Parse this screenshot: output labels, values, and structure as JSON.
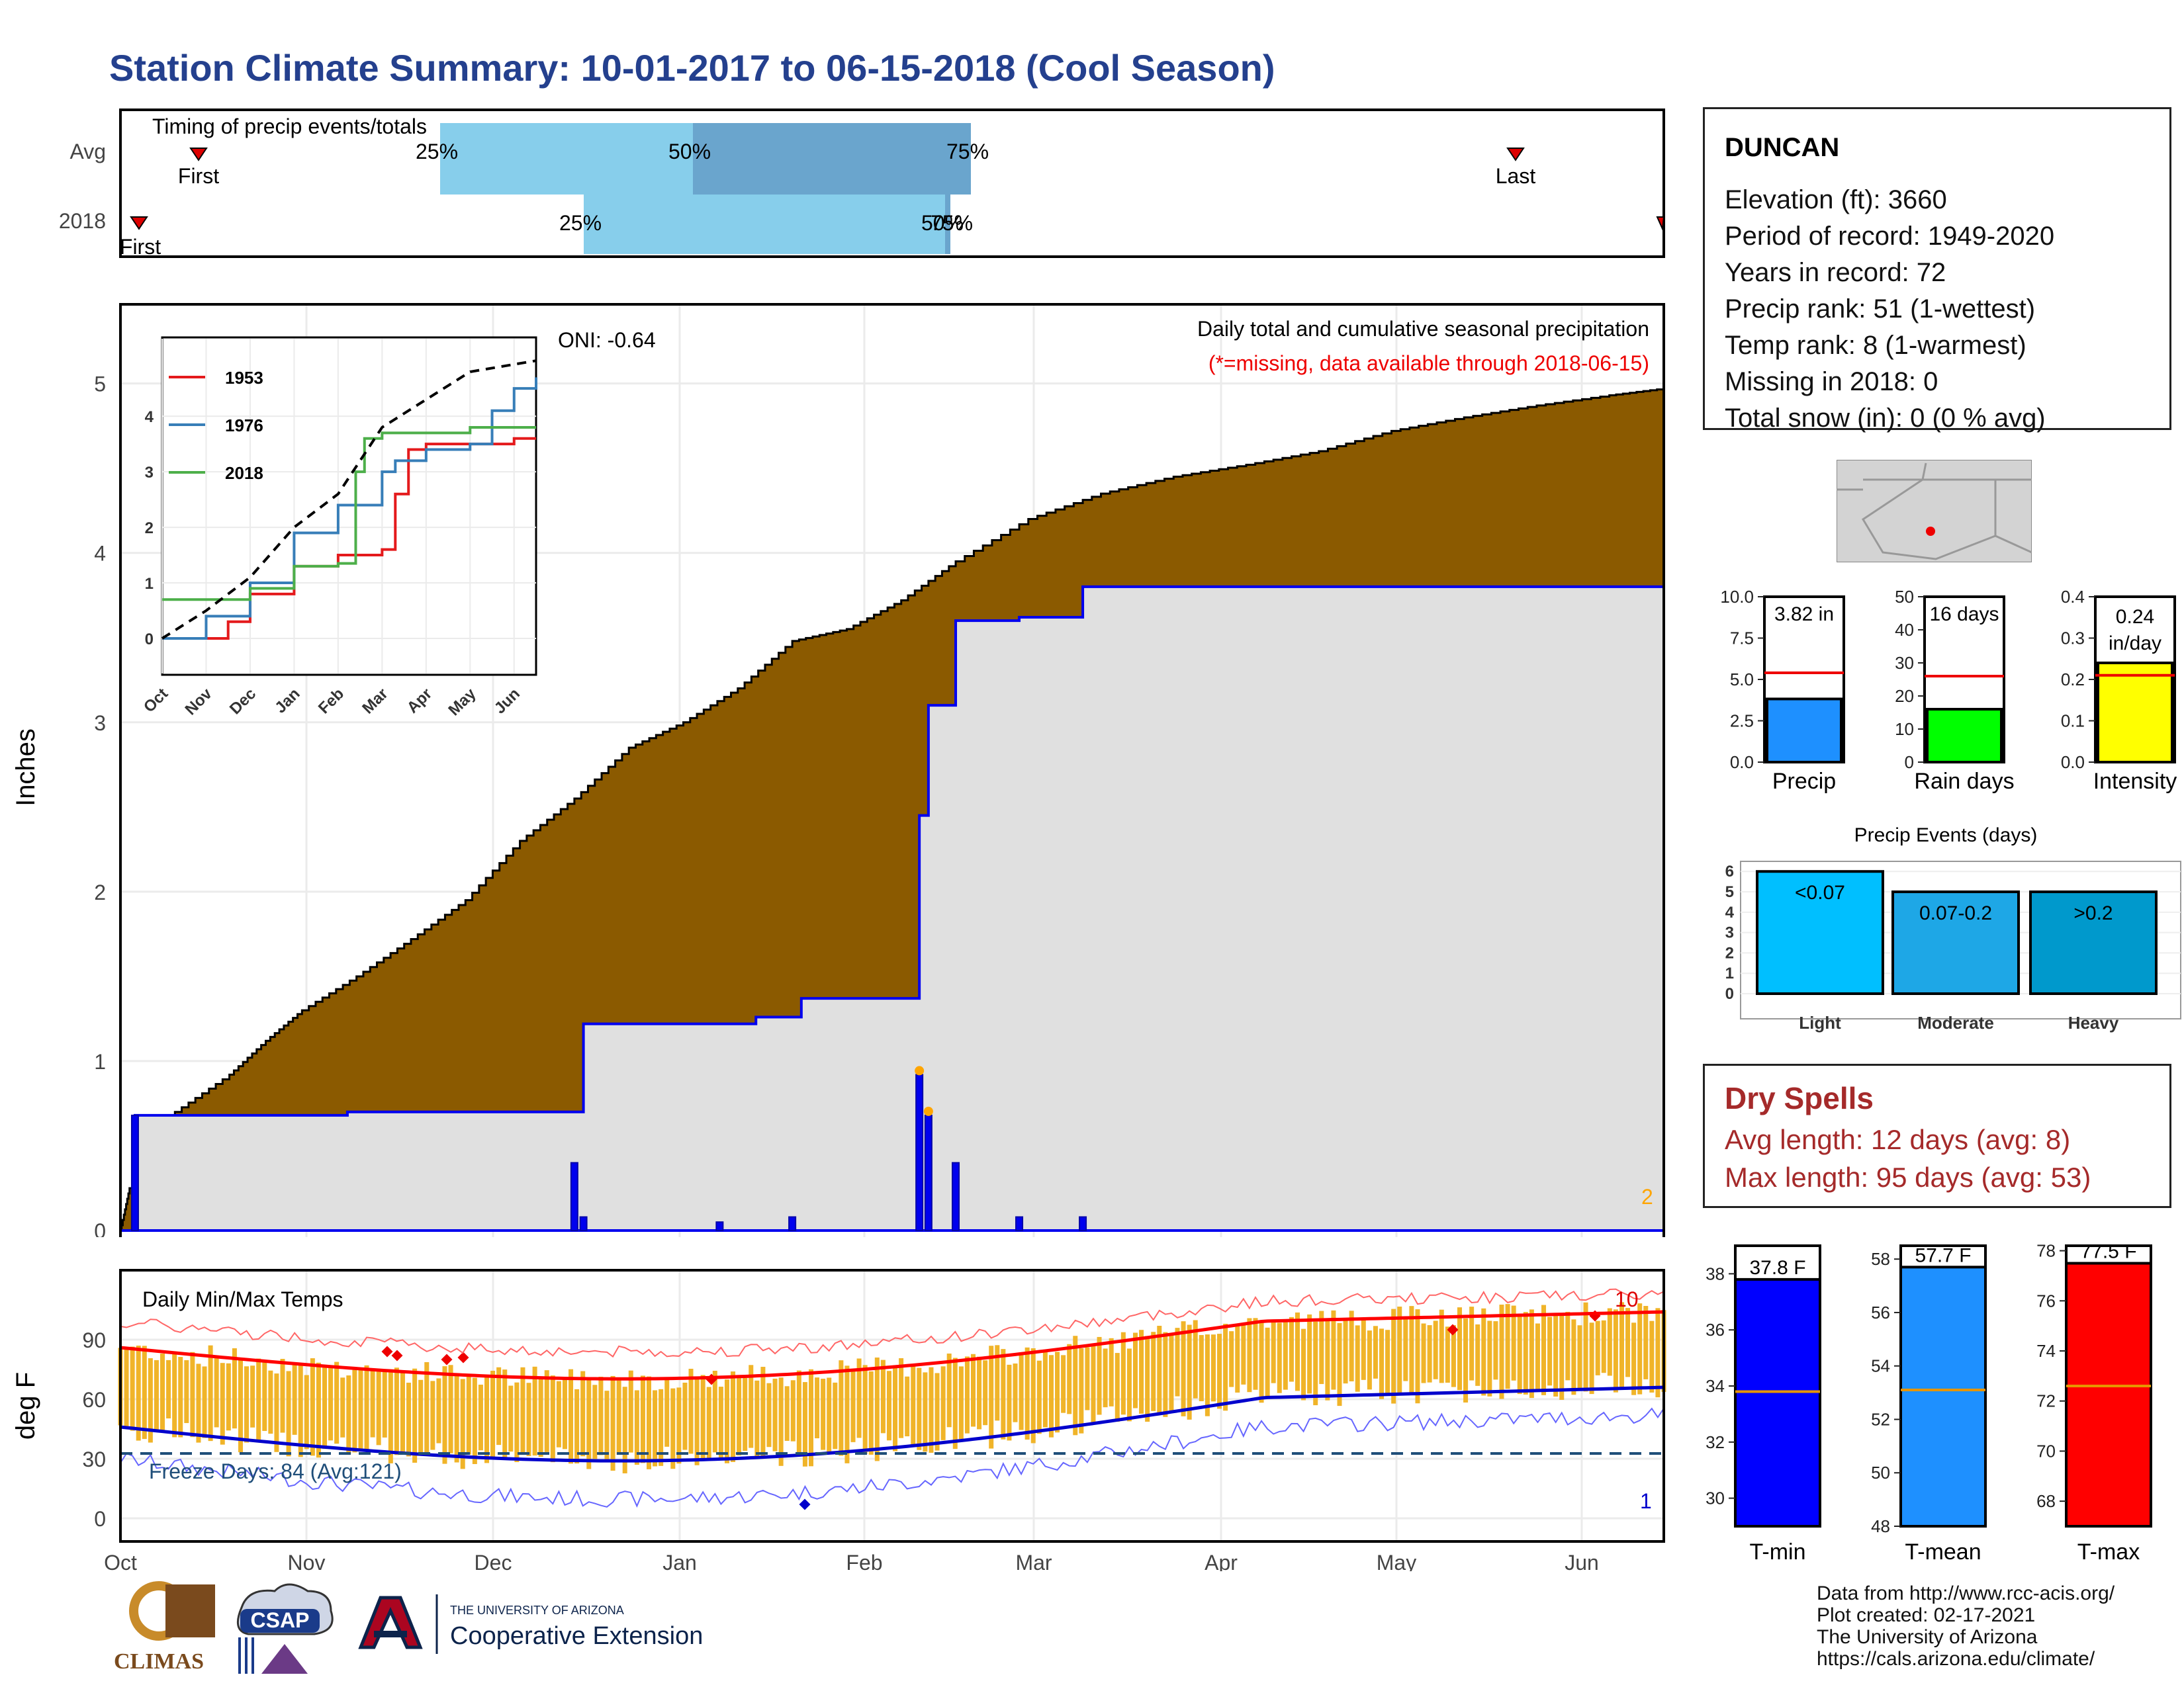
{
  "title": "Station Climate Summary: 10-01-2017 to 06-15-2018 (Cool Season)",
  "timing": {
    "title": "Timing of precip events/totals",
    "rows": [
      "Avg",
      "2018"
    ],
    "first_label": "First",
    "last_label": "Last",
    "avg_pct_labels": [
      "25%",
      "50%",
      "75%"
    ],
    "y2018_pct_labels": [
      "25%",
      "50%",
      "75%"
    ]
  },
  "station": {
    "name": "DUNCAN",
    "lines": [
      "Elevation (ft): 3660",
      "Period of record: 1949-2020",
      "Years in record: 72",
      "Precip rank: 51 (1-wettest)",
      "Temp rank: 8 (1-warmest)",
      "Missing in 2018: 0",
      "Total snow (in): 0 (0 % avg)"
    ]
  },
  "precip_panel": {
    "ylabel": "Inches",
    "subtitle": "Daily total and cumulative seasonal precipitation",
    "missing_note": "(*=missing, data available through 2018-06-15)",
    "oni": "ONI: -0.64",
    "count_label": "2",
    "colors": {
      "cumulative_avg": "#8b5a00",
      "surplus": "#008a00",
      "cumulative_2018": "#e0e0e0",
      "line": "#0000ee"
    }
  },
  "inset": {
    "legend": [
      {
        "name": "1953",
        "color": "#e41a1c"
      },
      {
        "name": "1976",
        "color": "#377eb8"
      },
      {
        "name": "2018",
        "color": "#4daf4a"
      }
    ],
    "months": [
      "Oct",
      "Nov",
      "Dec",
      "Jan",
      "Feb",
      "Mar",
      "Apr",
      "May",
      "Jun"
    ],
    "yticks": [
      "0",
      "1",
      "2",
      "3",
      "4"
    ]
  },
  "temp_panel": {
    "title": "Daily Min/Max Temps",
    "ylabel": "deg F",
    "freeze_label": "Freeze Days: 84 (Avg:121)",
    "record_high_count": "10",
    "record_low_count": "1",
    "yticks": [
      "0",
      "30",
      "60",
      "90"
    ],
    "months": [
      "Oct",
      "Nov",
      "Dec",
      "Jan",
      "Feb",
      "Mar",
      "Apr",
      "May",
      "Jun"
    ]
  },
  "summary_bars": [
    {
      "label": "Precip",
      "value_text": "3.82 in",
      "value": 3.82,
      "avg": 5.4,
      "ymax": 10.0,
      "ticks": [
        "0.0",
        "2.5",
        "5.0",
        "7.5",
        "10.0"
      ],
      "color": "#1e90ff"
    },
    {
      "label": "Rain days",
      "value_text": "16 days",
      "value": 16,
      "avg": 26,
      "ymax": 50,
      "ticks": [
        "0",
        "10",
        "20",
        "30",
        "40",
        "50"
      ],
      "color": "#00ff00"
    },
    {
      "label": "Intensity",
      "value_text": "0.24 in/day",
      "value": 0.24,
      "avg": 0.21,
      "ymax": 0.4,
      "ticks": [
        "0.0",
        "0.1",
        "0.2",
        "0.3",
        "0.4"
      ],
      "color": "#ffff00"
    }
  ],
  "precip_events": {
    "title": "Precip Events (days)",
    "categories": [
      "Light",
      "Moderate",
      "Heavy"
    ],
    "labels": [
      "<0.07",
      "0.07-0.2",
      ">0.2"
    ],
    "values": [
      6,
      5,
      5
    ],
    "yticks": [
      "0",
      "1",
      "2",
      "3",
      "4",
      "5",
      "6"
    ],
    "colors": [
      "#00bfff",
      "#1ea7e6",
      "#0099cc"
    ]
  },
  "dry_spells": {
    "title": "Dry Spells",
    "avg_line": "Avg length: 12 days (avg: 8)",
    "max_line": "Max length: 95 days (avg: 53)"
  },
  "temp_bars": [
    {
      "label": "T-min",
      "value_text": "37.8 F",
      "value": 37.8,
      "avg": 33.8,
      "ymin": 29,
      "ymax": 39,
      "ticks": [
        "30",
        "32",
        "34",
        "36",
        "38"
      ],
      "color": "#0000ff"
    },
    {
      "label": "T-mean",
      "value_text": "57.7 F",
      "value": 57.7,
      "avg": 53.1,
      "ymin": 48,
      "ymax": 58.5,
      "ticks": [
        "48",
        "50",
        "52",
        "54",
        "56",
        "58"
      ],
      "color": "#1e90ff"
    },
    {
      "label": "T-max",
      "value_text": "77.5 F",
      "value": 77.5,
      "avg": 72.6,
      "ymin": 67,
      "ymax": 78.2,
      "ticks": [
        "68",
        "70",
        "72",
        "74",
        "76",
        "78"
      ],
      "color": "#ff0000"
    }
  ],
  "footer": [
    "Data from http://www.rcc-acis.org/",
    "Plot created: 02-17-2021",
    "The University of Arizona",
    "https://cals.arizona.edu/climate/"
  ],
  "logos": {
    "climas": "CLIMAS",
    "csap": "CSAP",
    "ua_small": "THE UNIVERSITY OF ARIZONA",
    "ua_big": "Cooperative Extension"
  },
  "chart_data": {
    "type": "area",
    "x_range": [
      "2017-10-01",
      "2018-06-15"
    ],
    "cumulative_avg_points": [
      [
        0,
        0
      ],
      [
        0.05,
        0.25
      ],
      [
        0.3,
        0.7
      ],
      [
        0.6,
        0.92
      ],
      [
        0.8,
        1.12
      ],
      [
        1.0,
        1.3
      ],
      [
        1.3,
        1.5
      ],
      [
        1.6,
        1.72
      ],
      [
        1.9,
        1.95
      ],
      [
        2.2,
        2.3
      ],
      [
        2.5,
        2.55
      ],
      [
        2.8,
        2.85
      ],
      [
        3.1,
        3.0
      ],
      [
        3.4,
        3.2
      ],
      [
        3.7,
        3.48
      ],
      [
        4.0,
        3.55
      ],
      [
        4.3,
        3.72
      ],
      [
        4.6,
        3.95
      ],
      [
        5.0,
        4.2
      ],
      [
        5.4,
        4.35
      ],
      [
        5.8,
        4.45
      ],
      [
        6.2,
        4.52
      ],
      [
        6.6,
        4.6
      ],
      [
        7.0,
        4.72
      ],
      [
        7.4,
        4.8
      ],
      [
        7.8,
        4.87
      ],
      [
        8.2,
        4.93
      ],
      [
        8.5,
        4.97
      ]
    ],
    "cumulative_2018_points": [
      [
        0,
        0
      ],
      [
        0.08,
        0.68
      ],
      [
        0.75,
        0.68
      ],
      [
        1.25,
        0.7
      ],
      [
        2.5,
        0.7
      ],
      [
        2.55,
        1.22
      ],
      [
        3.15,
        1.22
      ],
      [
        3.5,
        1.26
      ],
      [
        3.75,
        1.37
      ],
      [
        4.4,
        1.37
      ],
      [
        4.4,
        2.45
      ],
      [
        4.45,
        3.1
      ],
      [
        4.6,
        3.6
      ],
      [
        4.95,
        3.62
      ],
      [
        5.3,
        3.8
      ],
      [
        8.5,
        3.8
      ]
    ],
    "daily_precip_spikes": [
      [
        0.08,
        0.68
      ],
      [
        2.5,
        0.4
      ],
      [
        2.55,
        0.08
      ],
      [
        3.3,
        0.05
      ],
      [
        3.7,
        0.08
      ],
      [
        4.4,
        0.92
      ],
      [
        4.45,
        0.68
      ],
      [
        4.6,
        0.4
      ],
      [
        5.3,
        0.08
      ],
      [
        4.95,
        0.08
      ]
    ]
  }
}
